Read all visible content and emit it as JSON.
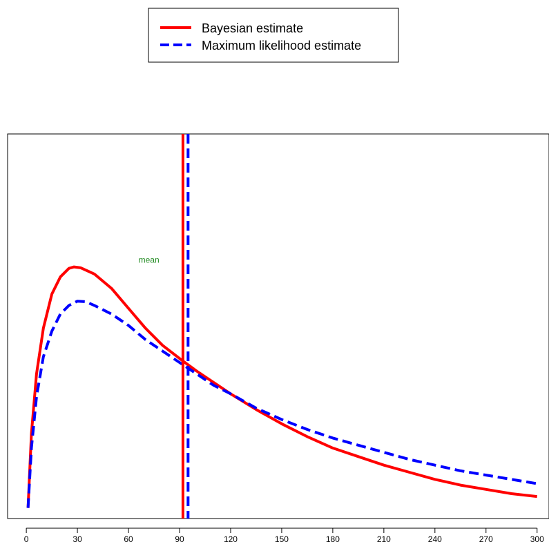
{
  "chart_data": {
    "type": "line",
    "title": "",
    "xlabel": "",
    "ylabel": "",
    "xlim": [
      -11,
      307
    ],
    "ylim": [
      0,
      1
    ],
    "xticks": [
      0,
      30,
      60,
      90,
      120,
      150,
      180,
      210,
      240,
      270,
      300
    ],
    "xtick_labels": [
      "0",
      "30",
      "60",
      "90",
      "120",
      "150",
      "180",
      "210",
      "240",
      "270",
      "300"
    ],
    "y_axis_shown": false,
    "grid": false,
    "legend": {
      "position": "top-center",
      "entries": [
        {
          "label": "Bayesian estimate",
          "color": "#ff0000",
          "style": "solid"
        },
        {
          "label": "Maximum likelihood estimate",
          "color": "#0000ff",
          "style": "dashed"
        }
      ]
    },
    "series": [
      {
        "name": "Bayesian estimate",
        "color": "#ff0000",
        "style": "solid",
        "x": [
          1,
          3,
          6,
          10,
          15,
          20,
          25,
          28,
          32,
          40,
          50,
          60,
          70,
          80,
          92,
          100,
          110,
          120,
          135,
          150,
          165,
          180,
          195,
          210,
          225,
          240,
          255,
          270,
          285,
          300
        ],
        "y": [
          0.03,
          0.29,
          0.5,
          0.66,
          0.78,
          0.84,
          0.87,
          0.875,
          0.872,
          0.85,
          0.8,
          0.73,
          0.66,
          0.6,
          0.545,
          0.51,
          0.47,
          0.43,
          0.375,
          0.325,
          0.28,
          0.24,
          0.21,
          0.18,
          0.155,
          0.13,
          0.11,
          0.095,
          0.08,
          0.07
        ]
      },
      {
        "name": "Maximum likelihood estimate",
        "color": "#0000ff",
        "style": "dashed",
        "x": [
          1,
          3,
          6,
          10,
          15,
          20,
          25,
          30,
          35,
          40,
          50,
          60,
          70,
          80,
          90,
          100,
          110,
          120,
          135,
          150,
          165,
          180,
          195,
          210,
          225,
          240,
          255,
          270,
          285,
          300
        ],
        "y": [
          0.03,
          0.24,
          0.42,
          0.56,
          0.65,
          0.71,
          0.74,
          0.755,
          0.753,
          0.74,
          0.71,
          0.67,
          0.62,
          0.58,
          0.54,
          0.5,
          0.46,
          0.43,
          0.38,
          0.34,
          0.305,
          0.275,
          0.25,
          0.225,
          0.2,
          0.18,
          0.16,
          0.145,
          0.13,
          0.115
        ]
      }
    ],
    "vlines": [
      {
        "series": "Bayesian estimate",
        "x": 92,
        "color": "#ff0000",
        "style": "solid"
      },
      {
        "series": "Maximum likelihood estimate",
        "x": 95,
        "color": "#0000ff",
        "style": "dashed"
      }
    ],
    "annotations": [
      {
        "text": "mean",
        "x": 72,
        "y": 0.89,
        "color": "#228b22"
      }
    ]
  }
}
